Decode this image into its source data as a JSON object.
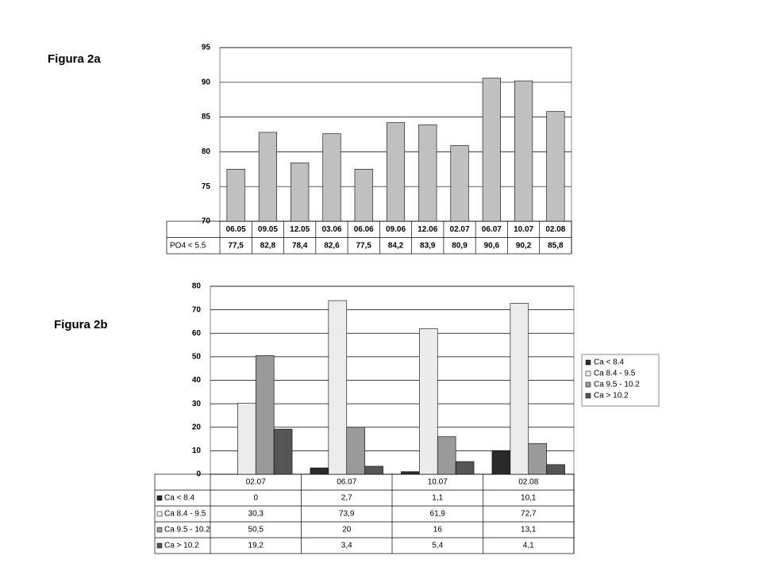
{
  "chart_data": [
    {
      "type": "bar",
      "title": "Figura 2a",
      "categories": [
        "06.05",
        "09.05",
        "12.05",
        "03.06",
        "06.06",
        "09.06",
        "12.06",
        "02.07",
        "06.07",
        "10.07",
        "02.08"
      ],
      "series": [
        {
          "name": "PO4 < 5.5",
          "color": "#c0c0c0",
          "values": [
            77.5,
            82.8,
            78.4,
            82.6,
            77.5,
            84.2,
            83.9,
            80.9,
            90.6,
            90.2,
            85.8
          ],
          "value_labels": [
            "77,5",
            "82,8",
            "78,4",
            "82,6",
            "77,5",
            "84,2",
            "83,9",
            "80,9",
            "90,6",
            "90,2",
            "85,8"
          ]
        }
      ],
      "ylim": [
        70,
        95
      ],
      "yticks": [
        70,
        75,
        80,
        85,
        90,
        95
      ],
      "grid": true,
      "legend": false
    },
    {
      "type": "bar",
      "title": "Figura 2b",
      "categories": [
        "02.07",
        "06.07",
        "10.07",
        "02.08"
      ],
      "series": [
        {
          "name": "Ca < 8.4",
          "color": "#2a2a2a",
          "values": [
            0,
            2.7,
            1.1,
            10.1
          ],
          "value_labels": [
            "0",
            "2,7",
            "1,1",
            "10,1"
          ]
        },
        {
          "name": "Ca 8.4 - 9.5",
          "color": "#ececec",
          "values": [
            30.3,
            73.9,
            61.9,
            72.7
          ],
          "value_labels": [
            "30,3",
            "73,9",
            "61,9",
            "72,7"
          ]
        },
        {
          "name": "Ca 9.5 - 10.2",
          "color": "#9a9a9a",
          "values": [
            50.5,
            20,
            16,
            13.1
          ],
          "value_labels": [
            "50,5",
            "20",
            "16",
            "13,1"
          ]
        },
        {
          "name": "Ca > 10.2",
          "color": "#555555",
          "values": [
            19.2,
            3.4,
            5.4,
            4.1
          ],
          "value_labels": [
            "19,2",
            "3,4",
            "5,4",
            "4,1"
          ]
        }
      ],
      "ylim": [
        0,
        80
      ],
      "yticks": [
        0,
        10,
        20,
        30,
        40,
        50,
        60,
        70,
        80
      ],
      "grid": true,
      "legend": "right"
    }
  ]
}
